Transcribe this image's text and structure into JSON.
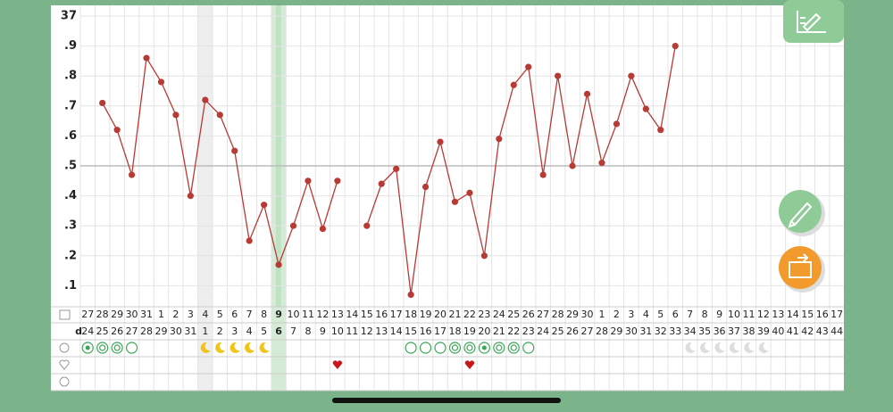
{
  "chart_data": {
    "type": "line",
    "categories": [
      "27",
      "28",
      "29",
      "30",
      "31",
      "1",
      "2",
      "3",
      "4",
      "5",
      "6",
      "7",
      "8",
      "9",
      "10",
      "11",
      "12",
      "13",
      "14",
      "15",
      "16",
      "17",
      "18",
      "19",
      "20",
      "21",
      "22",
      "23",
      "24",
      "25",
      "26",
      "27",
      "28",
      "29",
      "30",
      "1",
      "2",
      "3",
      "4",
      "5",
      "6",
      "7",
      "8",
      "9",
      "10",
      "11",
      "12",
      "13",
      "14",
      "15",
      "16",
      "17"
    ],
    "cycle_days": [
      "24",
      "25",
      "26",
      "27",
      "28",
      "29",
      "30",
      "31",
      "1",
      "2",
      "3",
      "4",
      "5",
      "6",
      "7",
      "8",
      "9",
      "10",
      "11",
      "12",
      "13",
      "14",
      "15",
      "16",
      "17",
      "18",
      "19",
      "20",
      "21",
      "22",
      "23",
      "24",
      "25",
      "26",
      "27",
      "28",
      "29",
      "30",
      "31",
      "32",
      "33",
      "34",
      "35",
      "36",
      "37",
      "38",
      "39",
      "40",
      "41",
      "42",
      "43",
      "44"
    ],
    "row_label": "d",
    "series": [
      {
        "color": "#b83a35",
        "values": [
          null,
          36.71,
          36.62,
          36.47,
          36.86,
          36.78,
          36.67,
          36.4,
          36.72,
          36.67,
          36.55,
          36.25,
          36.37,
          36.17,
          36.3,
          36.45,
          36.29,
          36.45,
          null,
          36.3,
          36.44,
          36.49,
          36.07,
          36.43,
          36.58,
          36.38,
          36.41,
          36.2,
          36.59,
          36.77,
          36.83,
          36.47,
          36.8,
          36.5,
          36.74,
          36.51,
          36.64,
          36.8,
          36.69,
          36.62,
          36.9,
          null,
          null,
          null,
          null,
          null,
          null,
          null,
          null,
          null,
          null,
          null
        ]
      }
    ],
    "ylim": [
      36.0,
      37.0
    ],
    "yticks": [
      {
        "value": 36.1,
        "label": ".1"
      },
      {
        "value": 36.2,
        "label": ".2"
      },
      {
        "value": 36.3,
        "label": ".3"
      },
      {
        "value": 36.4,
        "label": ".4"
      },
      {
        "value": 36.5,
        "label": ".5"
      },
      {
        "value": 36.6,
        "label": ".6"
      },
      {
        "value": 36.7,
        "label": ".7"
      },
      {
        "value": 36.8,
        "label": ".8"
      },
      {
        "value": 36.9,
        "label": ".9"
      },
      37
    ],
    "grid": true
  }
}
